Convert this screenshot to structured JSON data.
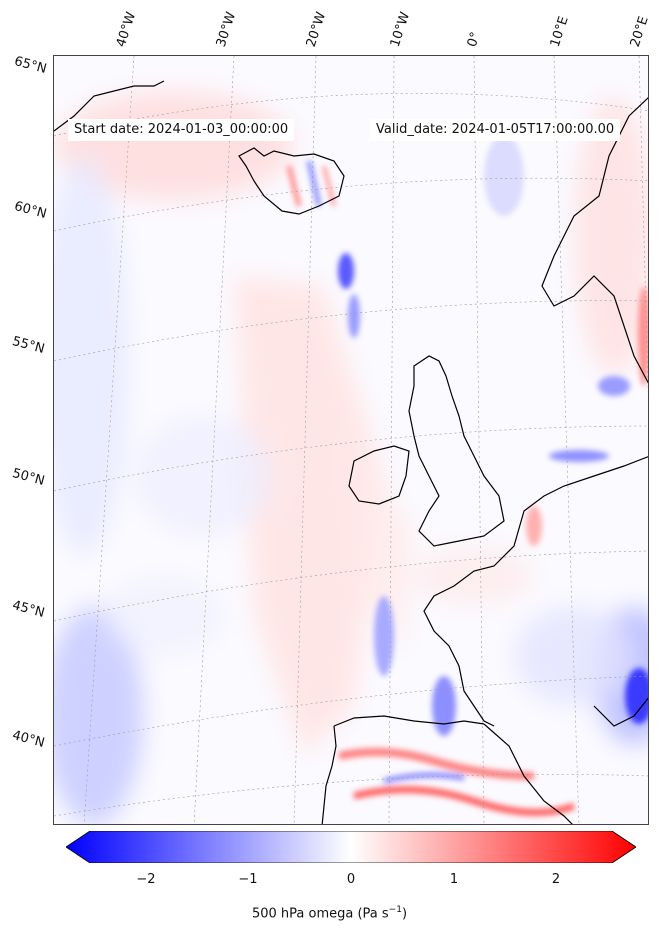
{
  "map": {
    "start_label": "Start date: 2024-01-03_00:00:00",
    "valid_label": "Valid_date: 2024-01-05T17:00:00.00",
    "lon_labels": [
      "40°W",
      "30°W",
      "20°W",
      "10°W",
      "0°",
      "10°E",
      "20°E"
    ],
    "lat_labels": [
      "65°N",
      "60°N",
      "55°N",
      "50°N",
      "45°N",
      "40°N"
    ],
    "projection": "conic",
    "field": "500 hPa omega",
    "gridlines": true,
    "coastlines": true
  },
  "colorbar": {
    "label": "500 hPa omega (Pa s",
    "label_sup": "−1",
    "label_close": ")",
    "ticks": [
      "−2",
      "−1",
      "0",
      "1",
      "2"
    ],
    "tick_values": [
      -2,
      -1,
      0,
      1,
      2
    ],
    "range": [
      -2.6,
      2.6
    ],
    "cmap": "bwr",
    "colors": {
      "low": "#0000ff",
      "mid": "#ffffff",
      "high": "#ff0000"
    },
    "extend": "both"
  }
}
